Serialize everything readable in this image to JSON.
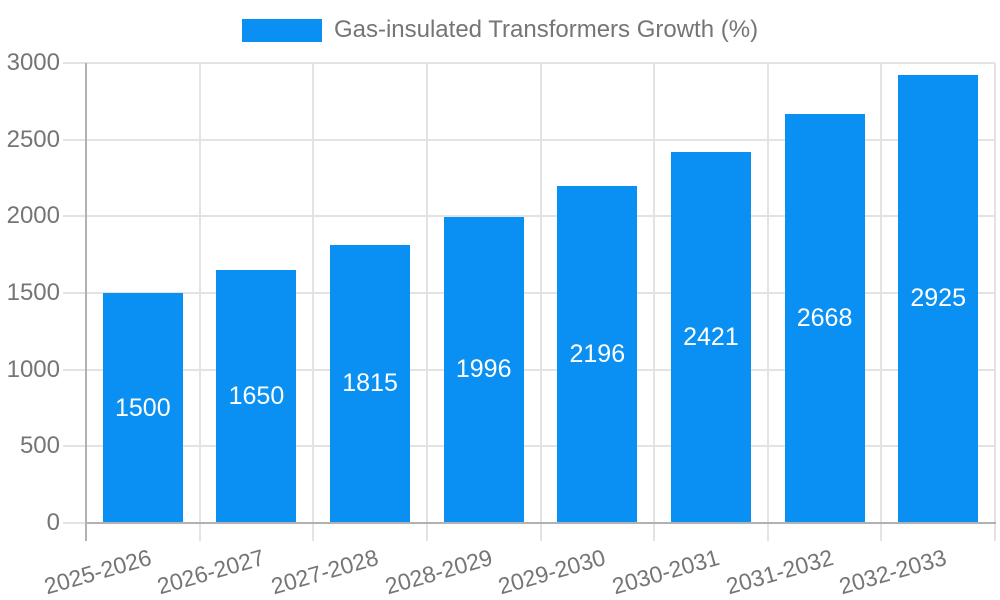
{
  "chart_data": {
    "type": "bar",
    "legend": "Gas-insulated Transformers Growth (%)",
    "categories": [
      "2025-2026",
      "2026-2027",
      "2027-2028",
      "2028-2029",
      "2029-2030",
      "2030-2031",
      "2031-2032",
      "2032-2033"
    ],
    "values": [
      1500,
      1650,
      1815,
      1996,
      2196,
      2421,
      2668,
      2925
    ],
    "yticks": [
      0,
      500,
      1000,
      1500,
      2000,
      2500,
      3000
    ],
    "ylim": [
      0,
      3000
    ],
    "xlabel": "",
    "ylabel": "",
    "grid": true,
    "legend_position": "top",
    "colors": {
      "bar": "#0a90f2",
      "bar_value_text": "#ffffff",
      "axis_text": "#757575",
      "gridline": "#e3e3e3",
      "axis_line": "#b1b1b1",
      "background": "#ffffff"
    }
  }
}
